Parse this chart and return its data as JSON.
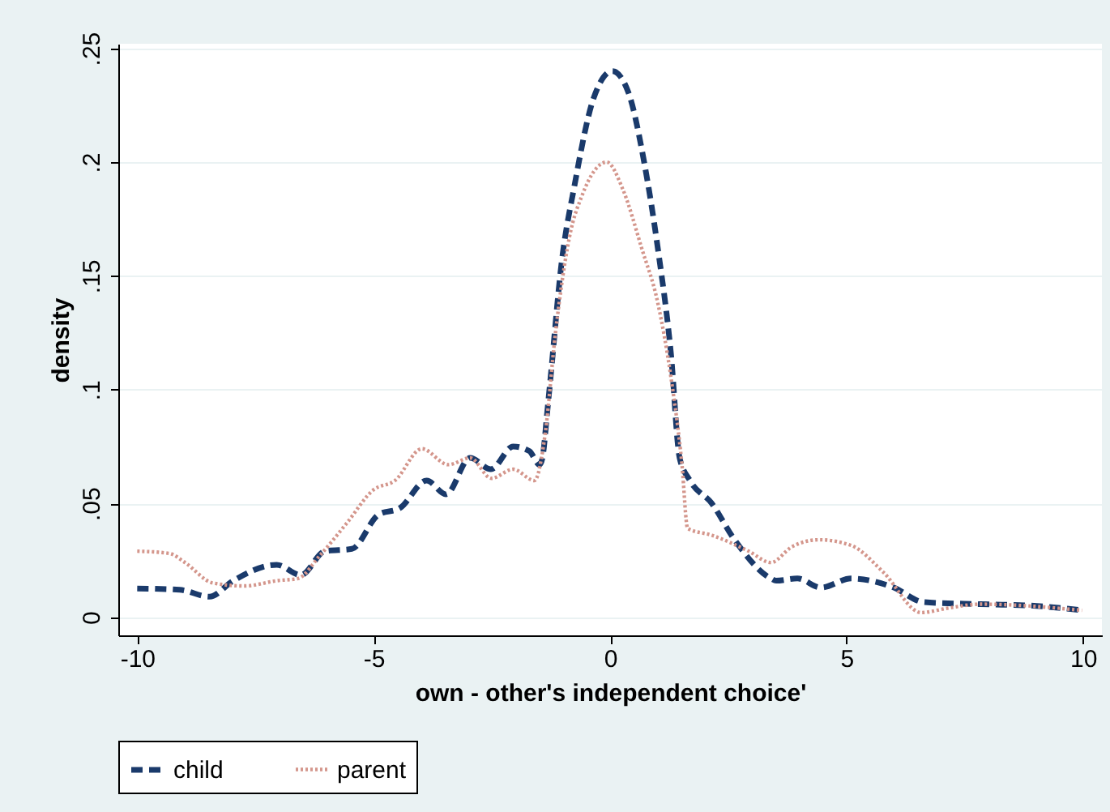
{
  "chart_data": {
    "type": "line",
    "xlabel": "own - other's independent choice'",
    "ylabel": "density",
    "xlim": [
      -10.4,
      10.4
    ],
    "xticks": [
      -10,
      -5,
      0,
      5,
      10
    ],
    "ylim": [
      -0.008,
      0.252
    ],
    "yticks": [
      0,
      {
        "value": 0.05,
        "label": ".05"
      },
      {
        "value": 0.1,
        "label": ".1"
      },
      {
        "value": 0.15,
        "label": ".15"
      },
      {
        "value": 0.2,
        "label": ".2"
      },
      {
        "value": 0.25,
        "label": ".25"
      }
    ],
    "grid": "y",
    "legend": "bottom",
    "series": [
      {
        "name": "child",
        "color": "#1a3a6b",
        "line_style": "dashed",
        "x": [
          -10,
          -9.1,
          -8.47,
          -7.97,
          -7.05,
          -6.54,
          -6.03,
          -5.46,
          -4.9,
          -4.44,
          -3.88,
          -3.47,
          -2.96,
          -2.52,
          -2.05,
          -1.71,
          -1.49,
          -1.43,
          -1.33,
          -1.26,
          -1.03,
          -0.75,
          -0.35,
          0.05,
          0.38,
          0.72,
          1.01,
          1.29,
          1.47,
          1.69,
          2.15,
          2.6,
          3.4,
          3.51,
          3.96,
          4.46,
          5.1,
          6.0,
          6.63,
          7.83,
          8.96,
          9.98
        ],
        "values": [
          0.0126,
          0.012,
          0.009,
          0.016,
          0.023,
          0.0185,
          0.029,
          0.03,
          0.045,
          0.048,
          0.06,
          0.054,
          0.07,
          0.065,
          0.075,
          0.073,
          0.067,
          0.07,
          0.09,
          0.105,
          0.155,
          0.19,
          0.228,
          0.24,
          0.231,
          0.2,
          0.162,
          0.115,
          0.07,
          0.06,
          0.05,
          0.035,
          0.017,
          0.016,
          0.017,
          0.013,
          0.017,
          0.013,
          0.0066,
          0.0057,
          0.005,
          0.003
        ]
      },
      {
        "name": "parent",
        "color": "#d4968c",
        "line_style": "dotted",
        "x": [
          -10,
          -9.32,
          -8.99,
          -8.4,
          -7.73,
          -7.05,
          -6.6,
          -6.14,
          -5.58,
          -5.0,
          -4.55,
          -3.98,
          -3.42,
          -2.96,
          -2.51,
          -2.05,
          -1.6,
          -1.37,
          -1.16,
          -0.86,
          -0.58,
          -0.07,
          0.27,
          0.67,
          1.01,
          1.29,
          1.52,
          1.64,
          2.15,
          2.93,
          3.4,
          3.85,
          4.42,
          5.1,
          5.78,
          6.58,
          7.15,
          7.83,
          9.98
        ],
        "values": [
          0.029,
          0.028,
          0.024,
          0.015,
          0.0137,
          0.016,
          0.017,
          0.027,
          0.041,
          0.056,
          0.06,
          0.074,
          0.067,
          0.07,
          0.061,
          0.065,
          0.06,
          0.081,
          0.124,
          0.167,
          0.186,
          0.2,
          0.188,
          0.162,
          0.138,
          0.105,
          0.067,
          0.039,
          0.036,
          0.029,
          0.024,
          0.031,
          0.034,
          0.0315,
          0.0197,
          0.002,
          0.004,
          0.0057,
          0.003
        ]
      }
    ]
  }
}
